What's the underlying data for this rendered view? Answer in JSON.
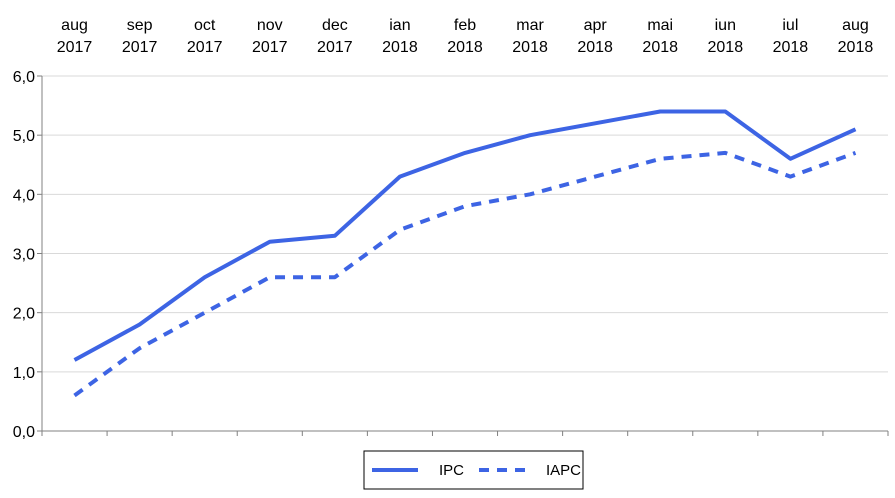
{
  "chart_data": {
    "type": "line",
    "x_top": [
      "aug",
      "sep",
      "oct",
      "nov",
      "dec",
      "ian",
      "feb",
      "mar",
      "apr",
      "mai",
      "iun",
      "iul",
      "aug"
    ],
    "x_bottom": [
      "2017",
      "2017",
      "2017",
      "2017",
      "2017",
      "2018",
      "2018",
      "2018",
      "2018",
      "2018",
      "2018",
      "2018",
      "2018"
    ],
    "ylim": [
      0,
      6
    ],
    "y_ticks": [
      "0,0",
      "1,0",
      "2,0",
      "3,0",
      "4,0",
      "5,0",
      "6,0"
    ],
    "grid": true,
    "legend_position": "bottom",
    "colors": {
      "series": "#3D64E4",
      "grid": "#D9D9D9",
      "axis": "#808080"
    },
    "series": [
      {
        "name": "IPC",
        "style": "solid",
        "values": [
          1.2,
          1.8,
          2.6,
          3.2,
          3.3,
          4.3,
          4.7,
          5.0,
          5.2,
          5.4,
          5.4,
          4.6,
          5.1
        ]
      },
      {
        "name": "IAPC",
        "style": "dashed",
        "values": [
          0.6,
          1.4,
          2.0,
          2.6,
          2.6,
          3.4,
          3.8,
          4.0,
          4.3,
          4.6,
          4.7,
          4.3,
          4.7
        ]
      }
    ]
  }
}
